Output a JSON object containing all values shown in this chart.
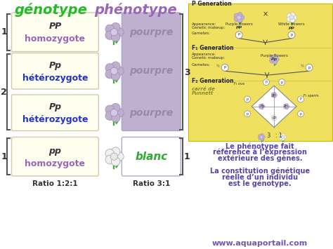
{
  "bg_color": "#ffffff",
  "cream_bg": "#fffff0",
  "yellow_bg": "#f0e060",
  "purple_box_bg": "#c0b0d0",
  "white_box_bg": "#ffffff",
  "title_genotype_color": "#22bb22",
  "title_phenotype_color": "#9966bb",
  "homozygote_label_color": "#9966bb",
  "heterozygote_label_color": "#2233cc",
  "pourpre_color": "#9988aa",
  "blanc_color": "#33aa33",
  "ratio_color": "#333333",
  "aquaportail_color": "#7755aa",
  "right_text_color": "#5544aa",
  "bracket_color": "#555555",
  "ratio_genotype": "Ratio 1:2:1",
  "ratio_phenotype": "Ratio 3:1",
  "right_text1": "Le phénotype fait",
  "right_text2": "référence à l’expression",
  "right_text3": "extérieure des gènes.",
  "right_text4": "La constitution génétique",
  "right_text5": "réelle d’un individu",
  "right_text6": "est le génotype.",
  "watermark": "www.aquaportail.com"
}
